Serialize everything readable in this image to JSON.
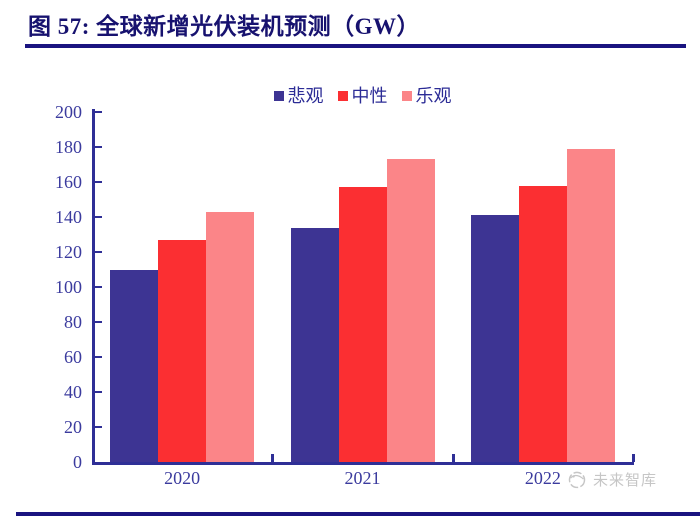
{
  "figure": {
    "title": "图 57:  全球新增光伏装机预测（GW）"
  },
  "watermark": {
    "label": "未来智库",
    "icon": "globe-sketch-icon"
  },
  "colors": {
    "title_navy": "#17126F",
    "rule_navy": "#1A1480",
    "watermark_gray": "#C6C6C6"
  },
  "chart_data": {
    "type": "bar",
    "title": "全球新增光伏装机预测（GW）",
    "categories": [
      "2020",
      "2021",
      "2022"
    ],
    "series": [
      {
        "id": "pessimistic",
        "name": "悲观",
        "color": "#3D3493",
        "values": [
          110,
          134,
          141
        ]
      },
      {
        "id": "neutral",
        "name": "中性",
        "color": "#FB2F32",
        "values": [
          127,
          157,
          158
        ]
      },
      {
        "id": "optimistic",
        "name": "乐观",
        "color": "#FB8588",
        "values": [
          143,
          173,
          179
        ]
      }
    ],
    "xlabel": "",
    "ylabel": "",
    "ylim": [
      0,
      200
    ],
    "yticks": [
      0,
      20,
      40,
      60,
      80,
      100,
      120,
      140,
      160,
      180,
      200
    ],
    "grid": false,
    "legend_position": "top",
    "axis_color": "#2F2F96",
    "tick_label_color": "#3B3B9E",
    "legend_text_color": "#2C2C96"
  }
}
